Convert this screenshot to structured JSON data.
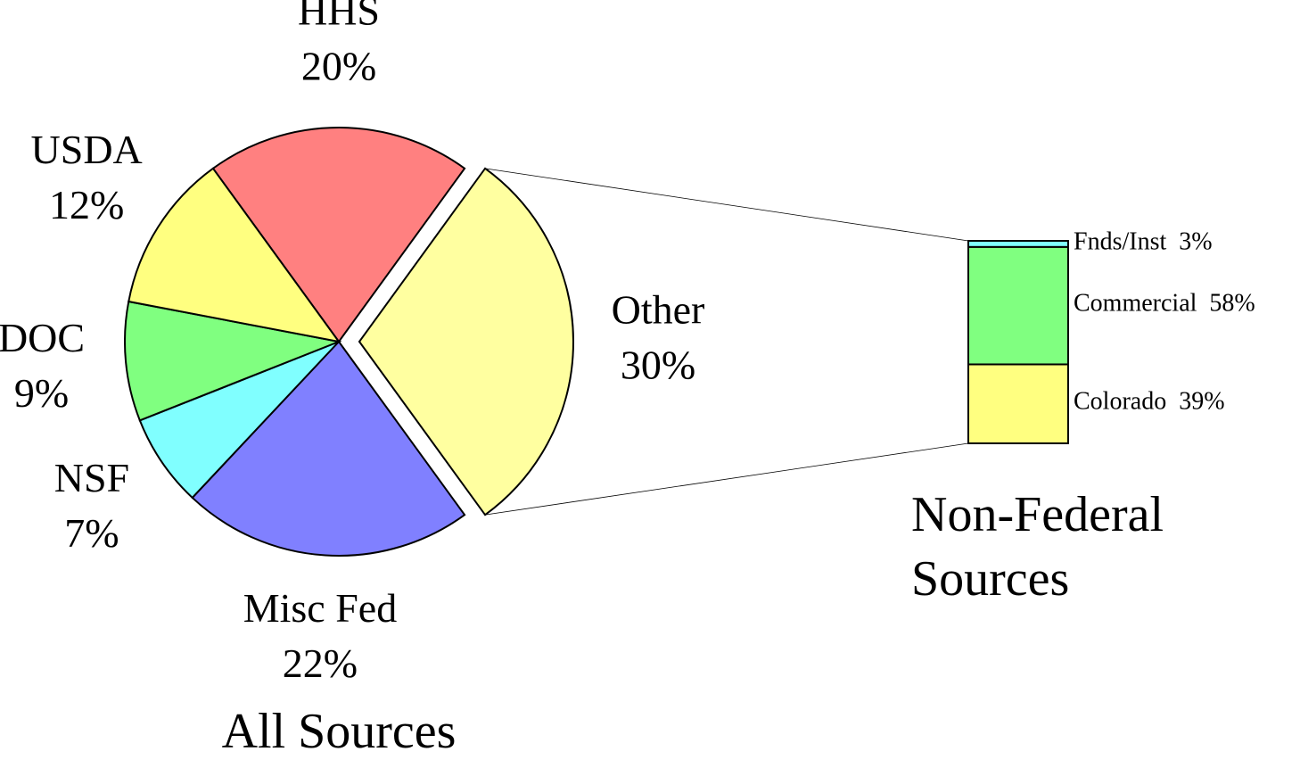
{
  "chart_data": [
    {
      "type": "pie",
      "title": "All Sources",
      "categories": [
        "HHS",
        "Other",
        "Misc Fed",
        "NSF",
        "DOC",
        "USDA"
      ],
      "values": [
        20,
        30,
        22,
        7,
        9,
        12
      ],
      "value_labels": [
        "20%",
        "30%",
        "22%",
        "7%",
        "9%",
        "12%"
      ],
      "colors": [
        "#ff8080",
        "#ffffa0",
        "#8080ff",
        "#80ffff",
        "#80ff80",
        "#ffff80"
      ],
      "explode": [
        false,
        true,
        false,
        false,
        false,
        false
      ]
    },
    {
      "type": "stacked-bar",
      "title": "Non-Federal Sources",
      "categories": [
        "Colorado",
        "Commercial",
        "Fnds/Inst"
      ],
      "values": [
        39,
        58,
        3
      ],
      "value_labels": [
        "39%",
        "58%",
        "3%"
      ],
      "colors": [
        "#ffff80",
        "#80ff80",
        "#80ffff"
      ]
    }
  ]
}
